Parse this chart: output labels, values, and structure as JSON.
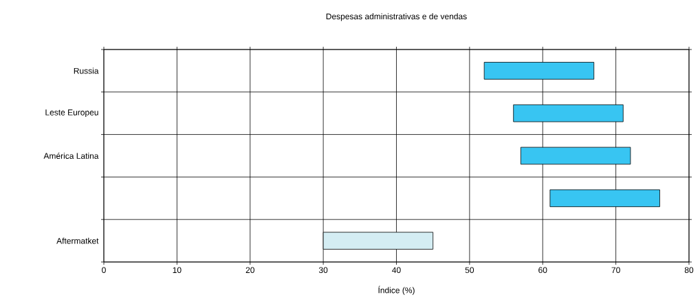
{
  "chart_data": {
    "type": "bar",
    "orientation": "horizontal",
    "title": "Despesas administrativas e de vendas",
    "xlabel": "Índice (%)",
    "categories": [
      "Russia",
      "Leste Europeu",
      "América Latina",
      null,
      "Aftermatket"
    ],
    "base": [
      52,
      56,
      57,
      61,
      30
    ],
    "values": [
      15,
      15,
      15,
      15,
      15
    ],
    "colors": [
      "#38c5f2",
      "#38c5f2",
      "#38c5f2",
      "#38c5f2",
      "#d4edf3"
    ],
    "xlim": [
      0,
      80
    ],
    "xticks": [
      0,
      10,
      20,
      30,
      40,
      50,
      60,
      70,
      80
    ],
    "grid": true
  }
}
